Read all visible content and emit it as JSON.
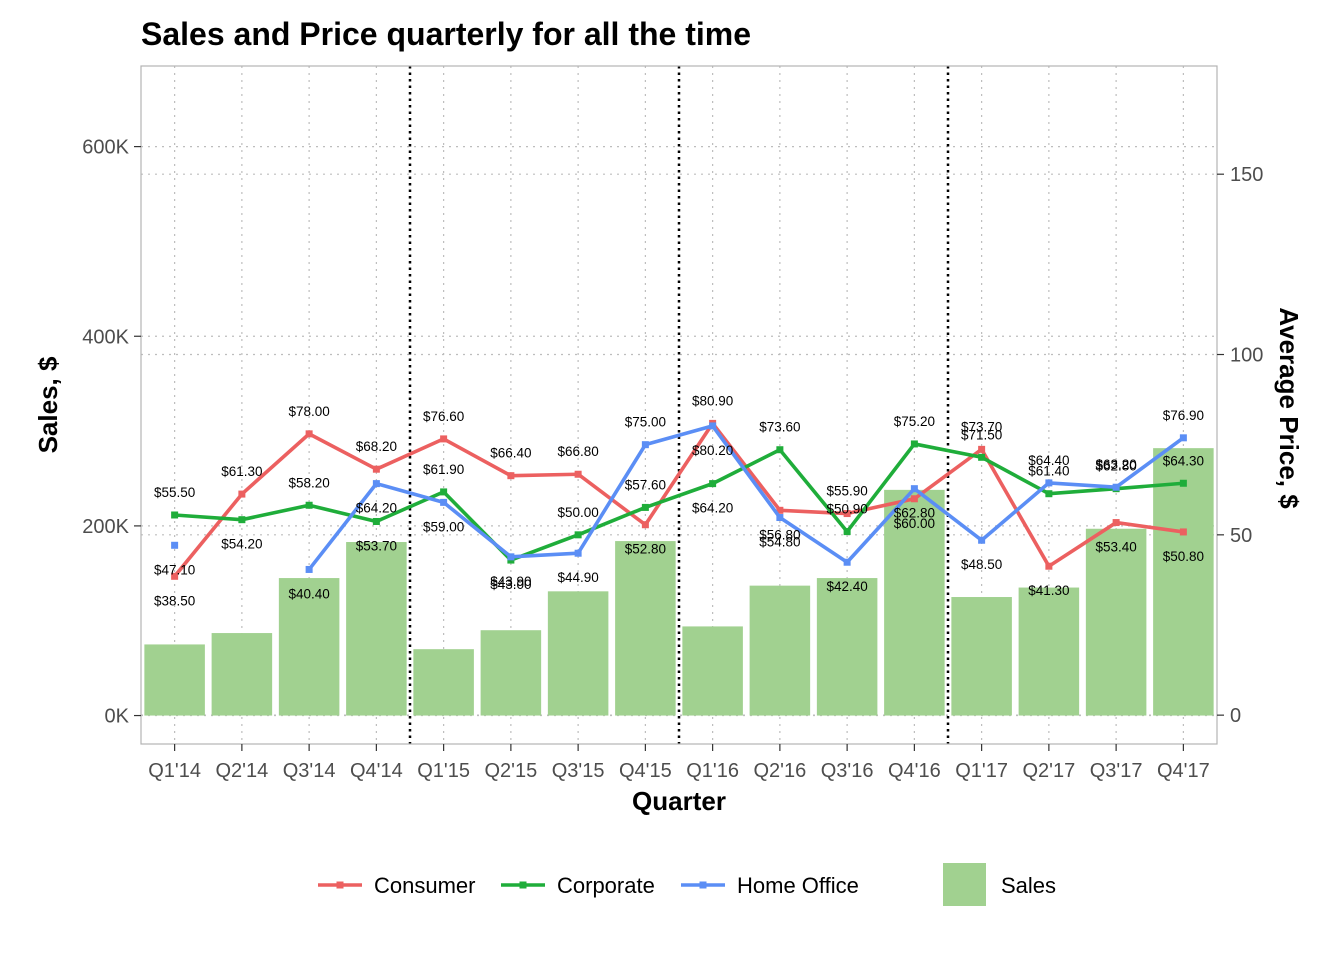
{
  "chart_data": {
    "type": "bar",
    "title": "Sales and Price quarterly for all the time",
    "xlabel": "Quarter",
    "ylabel": "Sales, $",
    "y2label": "Average Price, $",
    "categories": [
      "Q1'14",
      "Q2'14",
      "Q3'14",
      "Q4'14",
      "Q1'15",
      "Q2'15",
      "Q3'15",
      "Q4'15",
      "Q1'16",
      "Q2'16",
      "Q3'16",
      "Q4'16",
      "Q1'17",
      "Q2'17",
      "Q3'17",
      "Q4'17"
    ],
    "ylim": [
      -30000,
      685000
    ],
    "y2lim": [
      -8,
      180
    ],
    "y_ticks": [
      0,
      200000,
      400000,
      600000
    ],
    "y_tick_labels": [
      "0K",
      "200K",
      "400K",
      "600K"
    ],
    "y2_ticks": [
      0,
      50,
      100,
      150
    ],
    "y2_tick_labels": [
      "0",
      "50",
      "100",
      "150"
    ],
    "grid": "dotted",
    "year_separators_after": [
      3,
      7,
      11
    ],
    "legend_position": "bottom",
    "bar_series": {
      "name": "Sales",
      "color": "#a1d190",
      "values": [
        75000,
        87000,
        145000,
        183000,
        70000,
        90000,
        131000,
        184000,
        94000,
        137000,
        145000,
        238000,
        125000,
        135000,
        197000,
        282000
      ]
    },
    "series": [
      {
        "name": "Consumer",
        "color": "#ec6060",
        "values": [
          38.5,
          61.3,
          78.0,
          68.2,
          76.6,
          66.4,
          66.8,
          52.8,
          80.9,
          56.8,
          55.9,
          60.0,
          73.7,
          41.3,
          53.4,
          50.8
        ],
        "labels": [
          "$38.50",
          "$61.30",
          "$78.00",
          "$68.20",
          "$76.60",
          "$66.40",
          "$66.80",
          "$52.80",
          "$80.90",
          "$56.80",
          "$55.90",
          "$60.00",
          "$73.70",
          "$41.30",
          "$53.40",
          "$50.80"
        ]
      },
      {
        "name": "Corporate",
        "color": "#1fad3a",
        "values": [
          55.5,
          54.2,
          58.2,
          53.7,
          61.9,
          43.0,
          50.0,
          57.6,
          64.2,
          73.6,
          50.9,
          75.2,
          71.5,
          61.4,
          62.8,
          64.3
        ],
        "labels": [
          "$55.50",
          "$54.20",
          "$58.20",
          "$53.70",
          "$61.90",
          "$43.00",
          "$50.00",
          "$57.60",
          "$64.20",
          "$73.60",
          "$50.90",
          "$75.20",
          "$71.50",
          "$61.40",
          "$62.80",
          "$64.30"
        ]
      },
      {
        "name": "Home Office",
        "color": "#5b8ef5",
        "values": [
          47.1,
          null,
          40.4,
          64.2,
          59.0,
          43.9,
          44.9,
          75.0,
          80.2,
          54.8,
          42.4,
          62.8,
          48.5,
          64.4,
          63.2,
          76.9
        ],
        "labels": [
          "$47.10",
          "",
          "$40.40",
          "$64.20",
          "$59.00",
          "$43.90",
          "$44.90",
          "$75.00",
          "$80.20",
          "$54.80",
          "$42.40",
          "$62.80",
          "$48.50",
          "$64.40",
          "$63.20",
          "$76.90"
        ]
      }
    ]
  }
}
